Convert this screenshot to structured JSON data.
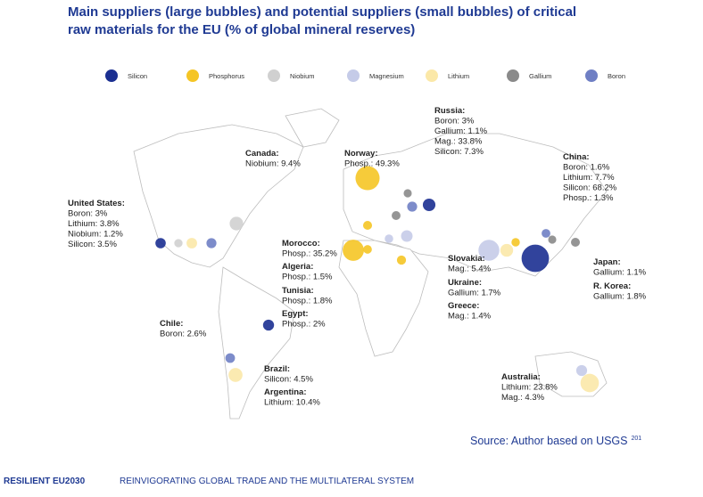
{
  "header": {
    "title_lines": [
      "Main suppliers (large bubbles) and potential suppliers (small bubbles) of critical",
      "raw materials for the EU (% of global mineral reserves)"
    ]
  },
  "legend": [
    {
      "name": "Silicon",
      "color": "#1b2f91"
    },
    {
      "name": "Phosphorus",
      "color": "#f5c525"
    },
    {
      "name": "Niobium",
      "color": "#d0d0d0"
    },
    {
      "name": "Magnesium",
      "color": "#c5cbe8"
    },
    {
      "name": "Lithium",
      "color": "#fbe8a8"
    },
    {
      "name": "Gallium",
      "color": "#8a8a8a"
    },
    {
      "name": "Boron",
      "color": "#6f7fc4"
    }
  ],
  "annotations": [
    {
      "country": "United States:",
      "items": [
        {
          "label": "Boron: 3%",
          "value": 3,
          "color": "#6f7fc4"
        },
        {
          "label": "Lithium: 3.8%",
          "value": 3.8,
          "color": "#fbe8a8"
        },
        {
          "label": "Niobium: 1.2%",
          "value": 1.2,
          "color": "#d0d0d0"
        },
        {
          "label": "Silicon: 3.5%",
          "value": 3.5,
          "color": "#1b2f91"
        }
      ]
    },
    {
      "country": "Canada:",
      "items": [
        {
          "label": "Niobium: 9.4%",
          "value": 9.4,
          "color": "#d0d0d0"
        }
      ]
    },
    {
      "country": "Norway:",
      "items": [
        {
          "label": "Phosp.: 49.3%",
          "value": 49.3,
          "color": "#f5c525"
        }
      ]
    },
    {
      "country": "Russia:",
      "items": [
        {
          "label": "Boron: 3%",
          "value": 3,
          "color": "#6f7fc4"
        },
        {
          "label": "Gallium: 1.1%",
          "value": 1.1,
          "color": "#8a8a8a"
        },
        {
          "label": "Mag.: 33.8%",
          "value": 33.8,
          "color": "#c5cbe8"
        },
        {
          "label": "Silicon: 7.3%",
          "value": 7.3,
          "color": "#1b2f91"
        }
      ]
    },
    {
      "country": "China:",
      "items": [
        {
          "label": "Boron: 1.6%",
          "value": 1.6,
          "color": "#6f7fc4"
        },
        {
          "label": "Lithium: 7.7%",
          "value": 7.7,
          "color": "#fbe8a8"
        },
        {
          "label": "Silicon: 68.2%",
          "value": 68.2,
          "color": "#1b2f91"
        },
        {
          "label": "Phosp.: 1.3%",
          "value": 1.3,
          "color": "#f5c525"
        }
      ]
    },
    {
      "country": "Morocco:",
      "items": [
        {
          "label": "Phosp.: 35.2%",
          "value": 35.2,
          "color": "#f5c525"
        }
      ]
    },
    {
      "country": "Algeria:",
      "items": [
        {
          "label": "Phosp.: 1.5%",
          "value": 1.5,
          "color": "#f5c525"
        }
      ]
    },
    {
      "country": "Tunisia:",
      "items": [
        {
          "label": "Phosp.: 1.8%",
          "value": 1.8,
          "color": "#f5c525"
        }
      ]
    },
    {
      "country": "Egypt:",
      "items": [
        {
          "label": "Phosp.: 2%",
          "value": 2,
          "color": "#f5c525"
        }
      ]
    },
    {
      "country": "Slovakia:",
      "items": [
        {
          "label": "Mag.: 5.4%",
          "value": 5.4,
          "color": "#c5cbe8"
        }
      ]
    },
    {
      "country": "Ukraine:",
      "items": [
        {
          "label": "Gallium: 1.7%",
          "value": 1.7,
          "color": "#8a8a8a"
        }
      ]
    },
    {
      "country": "Greece:",
      "items": [
        {
          "label": "Mag.: 1.4%",
          "value": 1.4,
          "color": "#c5cbe8"
        }
      ]
    },
    {
      "country": "Japan:",
      "items": [
        {
          "label": "Gallium: 1.1%",
          "value": 1.1,
          "color": "#8a8a8a"
        }
      ]
    },
    {
      "country": "R. Korea:",
      "items": [
        {
          "label": "Gallium: 1.8%",
          "value": 1.8,
          "color": "#8a8a8a"
        }
      ]
    },
    {
      "country": "Chile:",
      "items": [
        {
          "label": "Boron: 2.6%",
          "value": 2.6,
          "color": "#6f7fc4"
        }
      ]
    },
    {
      "country": "Brazil:",
      "items": [
        {
          "label": "Silicon: 4.5%",
          "value": 4.5,
          "color": "#1b2f91"
        }
      ]
    },
    {
      "country": "Argentina:",
      "items": [
        {
          "label": "Lithium: 10.4%",
          "value": 10.4,
          "color": "#fbe8a8"
        }
      ]
    },
    {
      "country": "Australia:",
      "items": [
        {
          "label": "Lithium: 23.8%",
          "value": 23.8,
          "color": "#fbe8a8"
        },
        {
          "label": "Mag.: 4.3%",
          "value": 4.3,
          "color": "#c5cbe8"
        }
      ]
    }
  ],
  "source": {
    "text": "Source: Author based on USGS",
    "ref": "201"
  },
  "footer": {
    "brand": "RESILIENT EU2030",
    "section": "REINVIGORATING GLOBAL TRADE AND THE MULTILATERAL SYSTEM"
  }
}
